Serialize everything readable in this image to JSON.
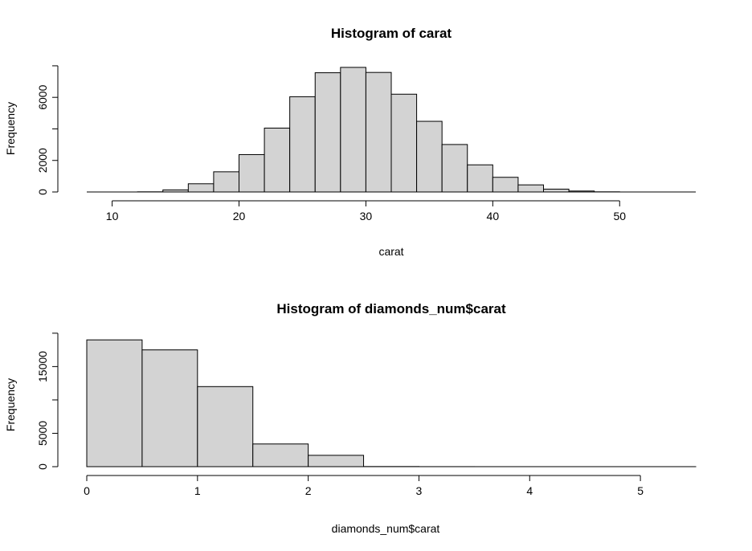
{
  "chart_data": [
    {
      "type": "bar",
      "title": "Histogram of carat",
      "xlabel": "carat",
      "ylabel": "Frequency",
      "bin_edges": [
        8,
        10,
        12,
        14,
        16,
        18,
        20,
        22,
        24,
        26,
        28,
        30,
        32,
        34,
        36,
        38,
        40,
        42,
        44,
        46,
        48,
        50,
        52,
        54
      ],
      "values": [
        0,
        0,
        10,
        130,
        520,
        1280,
        2370,
        4050,
        6040,
        7560,
        7900,
        7580,
        6200,
        4480,
        3010,
        1720,
        930,
        450,
        180,
        60,
        10,
        0,
        0
      ],
      "xticks": [
        10,
        20,
        30,
        40,
        50
      ],
      "xlim": [
        8,
        56
      ],
      "yticks": [
        0,
        2000,
        6000
      ],
      "ylim": [
        0,
        8200
      ],
      "colors": {
        "bar_fill": "#d3d3d3",
        "bar_stroke": "#000000"
      }
    },
    {
      "type": "bar",
      "title": "Histogram of diamonds_num$carat",
      "xlabel": "diamonds_num$carat",
      "ylabel": "Frequency",
      "bin_edges": [
        0,
        0.5,
        1,
        1.5,
        2,
        2.5,
        3,
        3.5,
        4,
        4.5,
        5,
        5.5
      ],
      "values": [
        19000,
        17500,
        12000,
        3400,
        1700,
        20,
        5,
        2,
        1,
        1,
        1
      ],
      "xticks": [
        0,
        1,
        2,
        3,
        4,
        5
      ],
      "xlim": [
        0,
        5.5
      ],
      "yticks": [
        0,
        5000,
        15000
      ],
      "ylim": [
        0,
        19500
      ],
      "colors": {
        "bar_fill": "#d3d3d3",
        "bar_stroke": "#000000"
      }
    }
  ]
}
